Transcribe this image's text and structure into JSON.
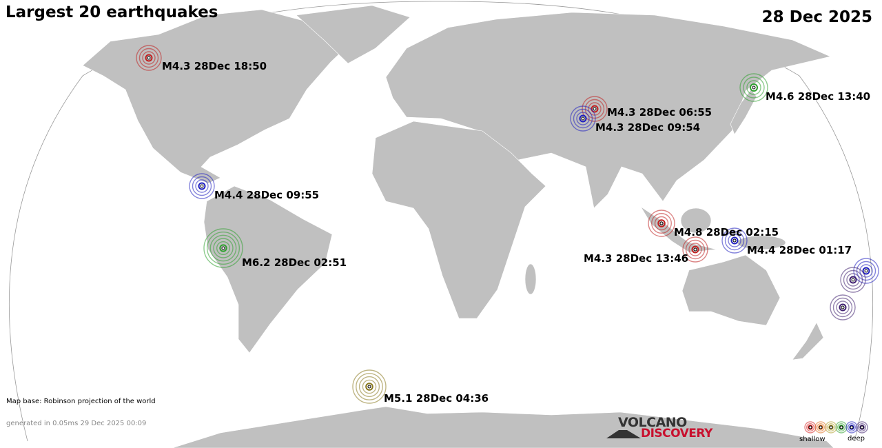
{
  "header": {
    "title": "Largest 20 earthquakes",
    "date": "28 Dec 2025"
  },
  "footer": {
    "map_base": "Map base: Robinson projection of the world",
    "generated": "generated in 0.05ms 29 Dec 2025 00:09",
    "logo_line1": "VOLCANO",
    "logo_line2": "DISCOVERY"
  },
  "legend": {
    "shallow_label": "shallow",
    "deep_label": "deep",
    "depth_colors": [
      "#d42020",
      "#e07020",
      "#b0a030",
      "#30a030",
      "#2020c0",
      "#402070"
    ]
  },
  "colors": {
    "land": "#c0c0c0",
    "ocean": "#ffffff"
  },
  "earthquakes": [
    {
      "label": "M4.3 28Dec 18:50",
      "magnitude": 4.3,
      "region": "Alaska/Canada",
      "depth_color": "#c02020"
    },
    {
      "label": "M4.6 28Dec 13:40",
      "magnitude": 4.6,
      "region": "Japan",
      "depth_color": "#30a030"
    },
    {
      "label": "M4.3 28Dec 06:55",
      "magnitude": 4.3,
      "region": "Central Asia",
      "depth_color": "#c02020"
    },
    {
      "label": "M4.3 28Dec 09:54",
      "magnitude": 4.3,
      "region": "Central Asia",
      "depth_color": "#2020c0"
    },
    {
      "label": "M4.4 28Dec 09:55",
      "magnitude": 4.4,
      "region": "Central America",
      "depth_color": "#2020c0"
    },
    {
      "label": "M6.2 28Dec 02:51",
      "magnitude": 6.2,
      "region": "Peru",
      "depth_color": "#30a030"
    },
    {
      "label": "M4.8 28Dec 02:15",
      "magnitude": 4.8,
      "region": "Sumatra",
      "depth_color": "#c02020"
    },
    {
      "label": "M4.3 28Dec 13:46",
      "magnitude": 4.3,
      "region": "Java",
      "depth_color": "#c02020"
    },
    {
      "label": "M4.4 28Dec 01:17",
      "magnitude": 4.4,
      "region": "Banda Sea",
      "depth_color": "#2020c0"
    },
    {
      "label": "M5.1 28Dec 04:36",
      "magnitude": 5.1,
      "region": "South Sandwich Islands",
      "depth_color": "#8a7a20"
    },
    {
      "label": "",
      "region": "Fiji",
      "depth_color": "#2020c0"
    },
    {
      "label": "",
      "region": "Fiji",
      "depth_color": "#402070"
    },
    {
      "label": "",
      "region": "Tonga",
      "depth_color": "#402070"
    }
  ]
}
